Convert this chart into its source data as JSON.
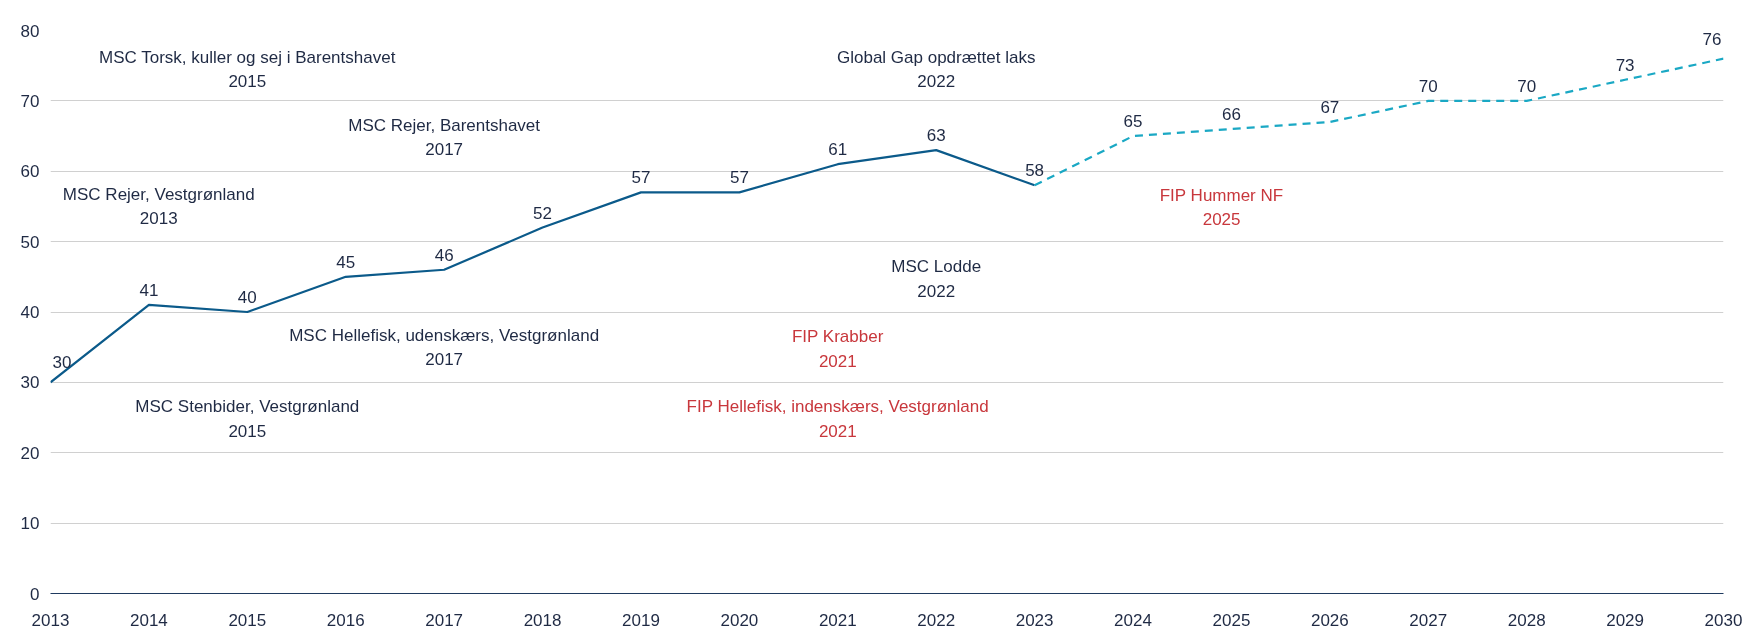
{
  "chart_data": {
    "type": "line",
    "x": [
      2013,
      2014,
      2015,
      2016,
      2017,
      2018,
      2019,
      2020,
      2021,
      2022,
      2023
    ],
    "series": [
      {
        "color": "#0b5a8a",
        "values": [
          30,
          41,
          40,
          45,
          46,
          52,
          57,
          57,
          61,
          63,
          58
        ],
        "value_labels": [
          "30",
          "41",
          "40",
          "45",
          "46",
          "52",
          "57",
          "57",
          "61",
          "63",
          "58"
        ],
        "line_style": "solid"
      },
      {
        "color": "#1aa8c4",
        "x": [
          2023,
          2024,
          2025,
          2026,
          2027,
          2028,
          2029,
          2030
        ],
        "values": [
          58,
          65,
          66,
          67,
          70,
          70,
          73,
          76
        ],
        "value_labels": [
          null,
          "65",
          "66",
          "67",
          "70",
          "70",
          "73",
          "76"
        ],
        "line_style": "dashed"
      }
    ],
    "xlim": [
      2013,
      2030
    ],
    "xticks": [
      2013,
      2014,
      2015,
      2016,
      2017,
      2018,
      2019,
      2020,
      2021,
      2022,
      2023,
      2024,
      2025,
      2026,
      2027,
      2028,
      2029,
      2030
    ],
    "ylim": [
      0,
      80
    ],
    "yticks": [
      0,
      10,
      20,
      30,
      40,
      50,
      60,
      70,
      80
    ],
    "grid": "y",
    "marker": "none",
    "annotations": [
      "MSC Torsk, kuller og sej i Barentshavet\n2015",
      "Global Gap opdrættet laks\n2022",
      "MSC Rejer, Barentshavet\n2017",
      "MSC Rejer, Vestgrønland\n2013",
      "MSC Lodde\n2022",
      "FIP Hummer NF\n2025",
      "MSC Hellefisk, udenskærs, Vestgrønland\n2017",
      "FIP Krabber\n2021",
      "MSC Stenbider, Vestgrønland\n2015",
      "FIP Hellefisk, indenskærs, Vestgrønland\n2021"
    ]
  }
}
